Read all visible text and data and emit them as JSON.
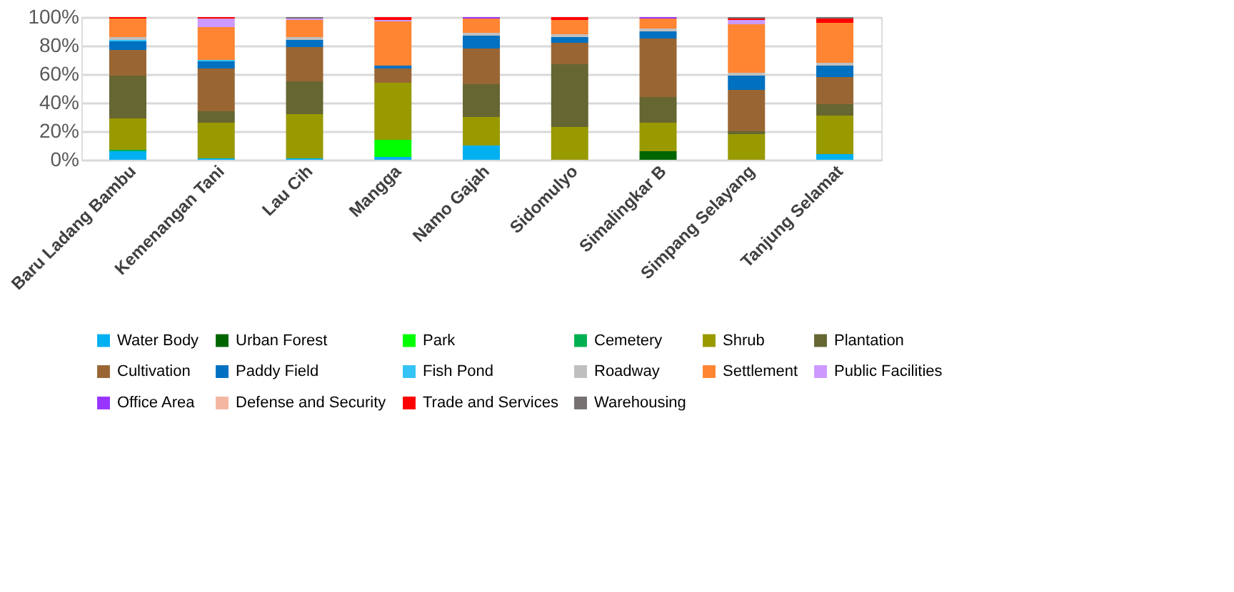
{
  "chart_data": {
    "type": "bar",
    "stacked": true,
    "categories": [
      "Baru Ladang Bambu",
      "Kemenangan Tani",
      "Lau Cih",
      "Mangga",
      "Namo Gajah",
      "Sidomulyo",
      "Simalingkar B",
      "Simpang Selayang",
      "Tanjung Selamat"
    ],
    "series": [
      {
        "name": "Water Body",
        "color": "#00b0f0",
        "values": [
          6,
          1,
          1,
          2,
          10,
          0,
          0,
          0,
          4
        ]
      },
      {
        "name": "Urban Forest",
        "color": "#006600",
        "values": [
          0,
          0,
          0,
          0,
          0,
          0,
          6,
          0,
          0
        ]
      },
      {
        "name": "Park",
        "color": "#00ff00",
        "values": [
          0,
          0,
          0,
          12,
          0,
          0,
          0,
          0,
          0
        ]
      },
      {
        "name": "Cemetery",
        "color": "#00b050",
        "values": [
          1,
          0,
          0,
          0,
          0,
          0,
          0,
          0,
          0
        ]
      },
      {
        "name": "Shrub",
        "color": "#999900",
        "values": [
          22,
          25,
          31,
          40,
          20,
          23,
          20,
          18,
          27
        ]
      },
      {
        "name": "Plantation",
        "color": "#666633",
        "values": [
          30,
          8,
          23,
          0,
          23,
          44,
          18,
          2,
          8
        ]
      },
      {
        "name": "Cultivation",
        "color": "#996633",
        "values": [
          18,
          30,
          24,
          10,
          25,
          15,
          41,
          29,
          19
        ]
      },
      {
        "name": "Paddy Field",
        "color": "#0070c0",
        "values": [
          6,
          5,
          5,
          2,
          9,
          4,
          5,
          10,
          8
        ]
      },
      {
        "name": "Fish Pond",
        "color": "#33c3f5",
        "values": [
          1,
          1,
          0,
          0,
          0,
          0,
          0,
          0,
          0
        ]
      },
      {
        "name": "Roadway",
        "color": "#bfbfbf",
        "values": [
          2,
          0,
          2,
          0,
          2,
          2,
          2,
          2,
          2
        ]
      },
      {
        "name": "Settlement",
        "color": "#ff8533",
        "values": [
          13,
          23,
          12,
          31,
          10,
          10,
          7,
          34,
          28
        ]
      },
      {
        "name": "Public Facilities",
        "color": "#cc99ff",
        "values": [
          0,
          6,
          1,
          1,
          0,
          0,
          0,
          3,
          0
        ]
      },
      {
        "name": "Office Area",
        "color": "#9933ff",
        "values": [
          0,
          0,
          0,
          0,
          1,
          0,
          1,
          0,
          0
        ]
      },
      {
        "name": "Defense and Security",
        "color": "#f4b6a0",
        "values": [
          0,
          0,
          0,
          0,
          0,
          0,
          0,
          0,
          0
        ]
      },
      {
        "name": "Trade and Services",
        "color": "#ff0000",
        "values": [
          1,
          1,
          0,
          2,
          0,
          2,
          0,
          1,
          3
        ]
      },
      {
        "name": "Warehousing",
        "color": "#767171",
        "values": [
          0,
          0,
          1,
          0,
          0,
          0,
          0,
          1,
          1
        ]
      }
    ],
    "ylim": [
      0,
      100
    ],
    "yticks": [
      {
        "value": 0,
        "label": "0%"
      },
      {
        "value": 20,
        "label": "20%"
      },
      {
        "value": 40,
        "label": "40%"
      },
      {
        "value": 60,
        "label": "60%"
      },
      {
        "value": 80,
        "label": "80%"
      },
      {
        "value": 100,
        "label": "100%"
      }
    ],
    "grid": "y",
    "legend": "bottom"
  }
}
